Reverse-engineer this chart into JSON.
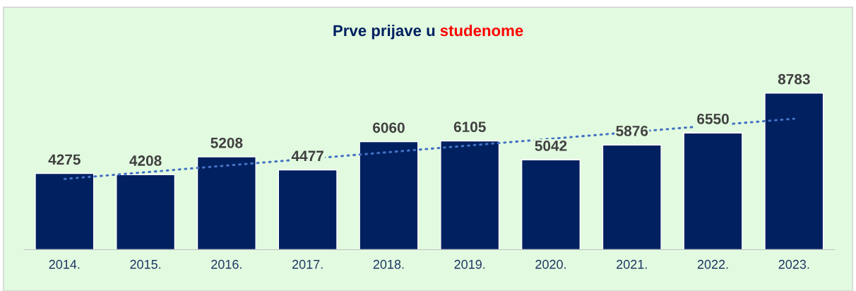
{
  "chart_data": {
    "type": "bar",
    "title": "Prve prijave u studenome",
    "categories": [
      "2014.",
      "2015.",
      "2016.",
      "2017.",
      "2018.",
      "2019.",
      "2020.",
      "2021.",
      "2022.",
      "2023."
    ],
    "series": [
      {
        "color": "#002060",
        "values": [
          4275,
          4208,
          5208,
          4477,
          6060,
          6105,
          5042,
          5876,
          6550,
          8783
        ],
        "value_labels": [
          "4275",
          "4208",
          "5208",
          "4477",
          "6060",
          "6105",
          "5042",
          "5876",
          "6550",
          "8783"
        ]
      },
      {
        "type": "line",
        "color": "#4472c4",
        "line_style": "dotted",
        "x": [
          "2014.",
          "2023."
        ],
        "values": [
          3970,
          7350
        ]
      }
    ],
    "grid": false,
    "legend": false
  }
}
